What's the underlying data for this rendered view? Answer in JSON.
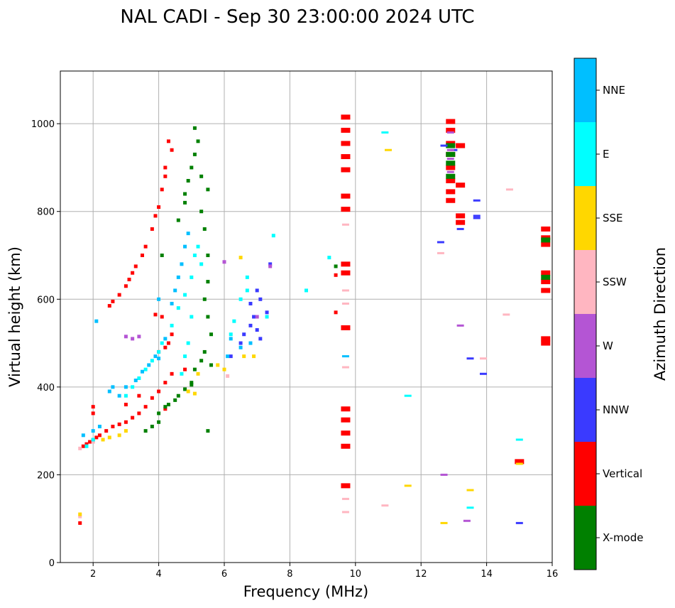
{
  "chart_data": {
    "type": "scatter",
    "title": "NAL CADI - Sep 30 23:00:00 2024 UTC",
    "xlabel": "Frequency (MHz)",
    "ylabel": "Virtual height (km)",
    "xlim": [
      1,
      16
    ],
    "ylim": [
      0,
      1120
    ],
    "xticks": [
      2,
      4,
      6,
      8,
      10,
      12,
      14,
      16
    ],
    "yticks": [
      0,
      200,
      400,
      600,
      800,
      1000
    ],
    "grid": true,
    "colorbar": {
      "title": "Azimuth Direction",
      "categories": [
        {
          "name": "X-mode",
          "color": "#008000"
        },
        {
          "name": "Vertical",
          "color": "#ff0000"
        },
        {
          "name": "NNW",
          "color": "#3a3aff"
        },
        {
          "name": "W",
          "color": "#b455d4"
        },
        {
          "name": "SSW",
          "color": "#ffb6c1"
        },
        {
          "name": "SSE",
          "color": "#ffd700"
        },
        {
          "name": "E",
          "color": "#00ffff"
        },
        {
          "name": "NNE",
          "color": "#00bfff"
        }
      ]
    },
    "series": [
      {
        "name": "Vertical",
        "points": [
          [
            1.6,
            90
          ],
          [
            1.7,
            265
          ],
          [
            1.8,
            270
          ],
          [
            1.9,
            275
          ],
          [
            2.0,
            280
          ],
          [
            2.1,
            285
          ],
          [
            2.2,
            290
          ],
          [
            2.0,
            340
          ],
          [
            2.0,
            355
          ],
          [
            2.4,
            300
          ],
          [
            2.6,
            310
          ],
          [
            2.8,
            315
          ],
          [
            3.0,
            320
          ],
          [
            3.2,
            330
          ],
          [
            3.4,
            340
          ],
          [
            3.6,
            355
          ],
          [
            3.8,
            375
          ],
          [
            4.0,
            390
          ],
          [
            4.2,
            410
          ],
          [
            4.4,
            430
          ],
          [
            3.0,
            360
          ],
          [
            3.4,
            380
          ],
          [
            2.5,
            585
          ],
          [
            2.6,
            595
          ],
          [
            2.8,
            610
          ],
          [
            3.0,
            630
          ],
          [
            3.1,
            645
          ],
          [
            3.2,
            660
          ],
          [
            3.3,
            675
          ],
          [
            3.5,
            700
          ],
          [
            3.6,
            720
          ],
          [
            3.8,
            760
          ],
          [
            3.9,
            790
          ],
          [
            4.0,
            810
          ],
          [
            4.1,
            850
          ],
          [
            4.2,
            880
          ],
          [
            4.2,
            900
          ],
          [
            4.3,
            960
          ],
          [
            4.4,
            940
          ],
          [
            4.1,
            560
          ],
          [
            3.9,
            565
          ],
          [
            4.0,
            480
          ],
          [
            4.2,
            490
          ],
          [
            4.3,
            500
          ],
          [
            4.4,
            520
          ],
          [
            4.8,
            440
          ],
          [
            4.2,
            350
          ],
          [
            9.7,
            1015
          ],
          [
            9.7,
            985
          ],
          [
            9.7,
            955
          ],
          [
            9.7,
            925
          ],
          [
            9.7,
            895
          ],
          [
            9.7,
            835
          ],
          [
            9.7,
            805
          ],
          [
            9.7,
            680
          ],
          [
            9.7,
            660
          ],
          [
            9.7,
            535
          ],
          [
            9.7,
            350
          ],
          [
            9.7,
            325
          ],
          [
            9.7,
            295
          ],
          [
            9.7,
            265
          ],
          [
            9.7,
            175
          ],
          [
            9.4,
            570
          ],
          [
            9.4,
            655
          ],
          [
            12.9,
            1005
          ],
          [
            12.9,
            985
          ],
          [
            12.9,
            955
          ],
          [
            12.9,
            930
          ],
          [
            12.9,
            900
          ],
          [
            12.9,
            870
          ],
          [
            12.9,
            845
          ],
          [
            12.9,
            825
          ],
          [
            13.2,
            950
          ],
          [
            13.2,
            860
          ],
          [
            13.2,
            790
          ],
          [
            13.2,
            775
          ],
          [
            15.0,
            230
          ],
          [
            15.8,
            760
          ],
          [
            15.8,
            740
          ],
          [
            15.8,
            725
          ],
          [
            15.8,
            660
          ],
          [
            15.8,
            640
          ],
          [
            15.8,
            620
          ],
          [
            15.8,
            510
          ],
          [
            15.8,
            500
          ]
        ]
      },
      {
        "name": "X-mode",
        "points": [
          [
            3.8,
            310
          ],
          [
            4.0,
            320
          ],
          [
            4.0,
            340
          ],
          [
            4.2,
            355
          ],
          [
            4.3,
            360
          ],
          [
            4.5,
            370
          ],
          [
            4.6,
            380
          ],
          [
            4.8,
            395
          ],
          [
            5.0,
            410
          ],
          [
            5.0,
            405
          ],
          [
            3.6,
            300
          ],
          [
            4.1,
            700
          ],
          [
            4.6,
            780
          ],
          [
            4.8,
            820
          ],
          [
            4.8,
            840
          ],
          [
            4.9,
            870
          ],
          [
            5.0,
            900
          ],
          [
            5.1,
            930
          ],
          [
            5.2,
            960
          ],
          [
            5.1,
            990
          ],
          [
            5.3,
            880
          ],
          [
            5.5,
            850
          ],
          [
            5.3,
            800
          ],
          [
            5.4,
            760
          ],
          [
            5.5,
            700
          ],
          [
            5.5,
            640
          ],
          [
            5.4,
            600
          ],
          [
            5.5,
            560
          ],
          [
            5.6,
            520
          ],
          [
            5.4,
            480
          ],
          [
            5.6,
            450
          ],
          [
            5.3,
            460
          ],
          [
            5.1,
            440
          ],
          [
            5.5,
            300
          ],
          [
            9.4,
            675
          ],
          [
            12.9,
            950
          ],
          [
            12.9,
            930
          ],
          [
            12.9,
            910
          ],
          [
            12.9,
            880
          ],
          [
            15.8,
            735
          ],
          [
            15.8,
            650
          ]
        ]
      },
      {
        "name": "NNW",
        "points": [
          [
            6.2,
            470
          ],
          [
            6.5,
            500
          ],
          [
            6.6,
            520
          ],
          [
            6.8,
            540
          ],
          [
            6.9,
            560
          ],
          [
            7.0,
            530
          ],
          [
            7.1,
            510
          ],
          [
            7.1,
            600
          ],
          [
            7.3,
            570
          ],
          [
            6.8,
            590
          ],
          [
            7.0,
            620
          ],
          [
            7.4,
            680
          ],
          [
            12.7,
            950
          ],
          [
            13.0,
            940
          ],
          [
            12.6,
            730
          ],
          [
            13.2,
            760
          ],
          [
            13.7,
            825
          ],
          [
            13.7,
            790
          ],
          [
            13.7,
            785
          ],
          [
            13.5,
            465
          ],
          [
            13.9,
            430
          ],
          [
            15.0,
            90
          ]
        ]
      },
      {
        "name": "W",
        "points": [
          [
            3.0,
            515
          ],
          [
            3.2,
            510
          ],
          [
            3.4,
            515
          ],
          [
            7.0,
            560
          ],
          [
            7.4,
            675
          ],
          [
            12.9,
            980
          ],
          [
            12.9,
            940
          ],
          [
            12.9,
            920
          ],
          [
            12.9,
            890
          ],
          [
            13.2,
            540
          ],
          [
            13.4,
            95
          ],
          [
            12.7,
            200
          ],
          [
            6.0,
            685
          ]
        ]
      },
      {
        "name": "SSW",
        "points": [
          [
            1.6,
            105
          ],
          [
            1.6,
            260
          ],
          [
            2.0,
            275
          ],
          [
            9.7,
            770
          ],
          [
            9.7,
            620
          ],
          [
            9.7,
            590
          ],
          [
            9.7,
            445
          ],
          [
            9.7,
            145
          ],
          [
            9.7,
            115
          ],
          [
            10.9,
            130
          ],
          [
            12.6,
            705
          ],
          [
            14.7,
            850
          ],
          [
            14.6,
            565
          ],
          [
            13.9,
            465
          ],
          [
            6.1,
            425
          ]
        ]
      },
      {
        "name": "SSE",
        "points": [
          [
            1.6,
            110
          ],
          [
            2.3,
            280
          ],
          [
            2.5,
            285
          ],
          [
            2.8,
            290
          ],
          [
            3.0,
            300
          ],
          [
            4.9,
            390
          ],
          [
            5.1,
            385
          ],
          [
            5.2,
            430
          ],
          [
            5.8,
            450
          ],
          [
            6.0,
            440
          ],
          [
            6.6,
            470
          ],
          [
            6.9,
            470
          ],
          [
            6.5,
            695
          ],
          [
            11.0,
            940
          ],
          [
            11.6,
            175
          ],
          [
            12.7,
            90
          ],
          [
            13.5,
            165
          ],
          [
            15.0,
            225
          ]
        ]
      },
      {
        "name": "E",
        "points": [
          [
            1.8,
            265
          ],
          [
            2.0,
            280
          ],
          [
            3.0,
            380
          ],
          [
            3.2,
            400
          ],
          [
            3.4,
            420
          ],
          [
            3.6,
            440
          ],
          [
            3.8,
            460
          ],
          [
            4.0,
            480
          ],
          [
            4.1,
            500
          ],
          [
            4.4,
            540
          ],
          [
            4.6,
            580
          ],
          [
            4.8,
            610
          ],
          [
            4.9,
            500
          ],
          [
            5.0,
            650
          ],
          [
            5.1,
            700
          ],
          [
            5.2,
            720
          ],
          [
            5.3,
            680
          ],
          [
            5.0,
            560
          ],
          [
            4.8,
            470
          ],
          [
            4.7,
            430
          ],
          [
            6.2,
            520
          ],
          [
            6.3,
            550
          ],
          [
            6.5,
            600
          ],
          [
            6.7,
            620
          ],
          [
            6.7,
            650
          ],
          [
            7.3,
            560
          ],
          [
            7.5,
            745
          ],
          [
            8.5,
            620
          ],
          [
            9.2,
            695
          ],
          [
            10.9,
            980
          ],
          [
            11.6,
            380
          ],
          [
            13.5,
            125
          ],
          [
            15.0,
            280
          ]
        ]
      },
      {
        "name": "NNE",
        "points": [
          [
            1.7,
            290
          ],
          [
            2.0,
            300
          ],
          [
            2.1,
            550
          ],
          [
            2.2,
            310
          ],
          [
            2.5,
            390
          ],
          [
            2.6,
            400
          ],
          [
            2.8,
            380
          ],
          [
            3.0,
            400
          ],
          [
            3.3,
            415
          ],
          [
            3.5,
            435
          ],
          [
            3.7,
            450
          ],
          [
            3.9,
            470
          ],
          [
            4.0,
            465
          ],
          [
            4.2,
            510
          ],
          [
            4.4,
            590
          ],
          [
            4.5,
            620
          ],
          [
            4.6,
            650
          ],
          [
            4.7,
            680
          ],
          [
            4.8,
            720
          ],
          [
            4.9,
            750
          ],
          [
            4.0,
            600
          ],
          [
            6.1,
            470
          ],
          [
            6.2,
            510
          ],
          [
            6.5,
            490
          ],
          [
            6.8,
            500
          ],
          [
            9.7,
            470
          ]
        ]
      }
    ]
  }
}
